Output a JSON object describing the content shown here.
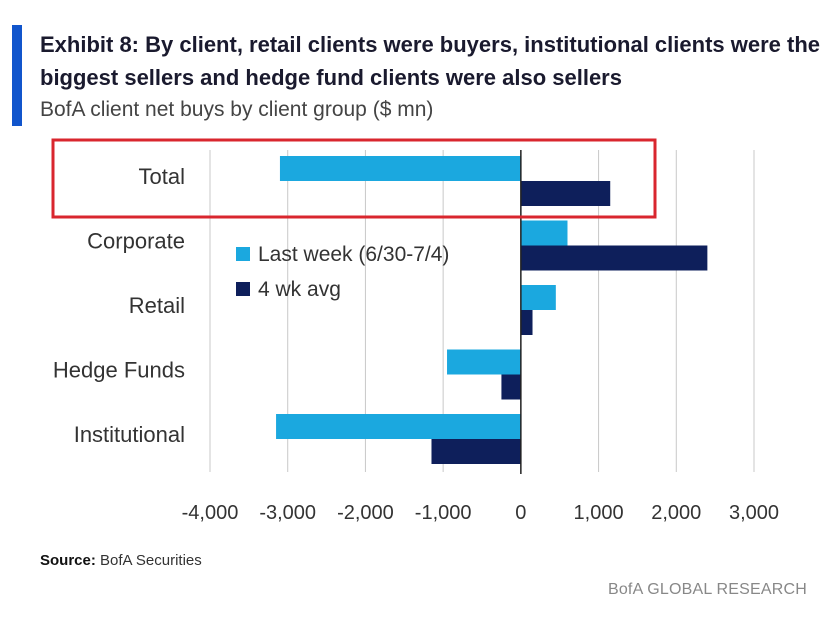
{
  "header": {
    "title": "Exhibit 8: By client, retail clients were buyers, institutional clients were the biggest sellers and hedge fund clients were also sellers",
    "subtitle": "BofA client net buys by client group ($ mn)"
  },
  "footer": {
    "source_label": "Source:",
    "source_text": "BofA Securities",
    "brand": "BofA GLOBAL RESEARCH"
  },
  "colors": {
    "accent": "#1155cc",
    "last_week": "#1ba8df",
    "avg_4wk": "#0e1f5b",
    "grid": "#c8c8c8",
    "highlight": "#d9262e"
  },
  "chart_data": {
    "type": "bar",
    "orientation": "horizontal",
    "categories": [
      "Total",
      "Corporate",
      "Retail",
      "Hedge Funds",
      "Institutional"
    ],
    "series": [
      {
        "name": "Last week (6/30-7/4)",
        "values": [
          -3100,
          600,
          450,
          -950,
          -3150
        ]
      },
      {
        "name": "4 wk avg",
        "values": [
          1150,
          2400,
          150,
          -250,
          -1150
        ]
      }
    ],
    "xlim": [
      -4000,
      3000
    ],
    "xticks": [
      -4000,
      -3000,
      -2000,
      -1000,
      0,
      1000,
      2000,
      3000
    ],
    "xtick_labels": [
      "-4,000",
      "-3,000",
      "-2,000",
      "-1,000",
      "0",
      "1,000",
      "2,000",
      "3,000"
    ],
    "grid": true,
    "legend_position": "upper-middle",
    "highlighted_category": "Total"
  }
}
